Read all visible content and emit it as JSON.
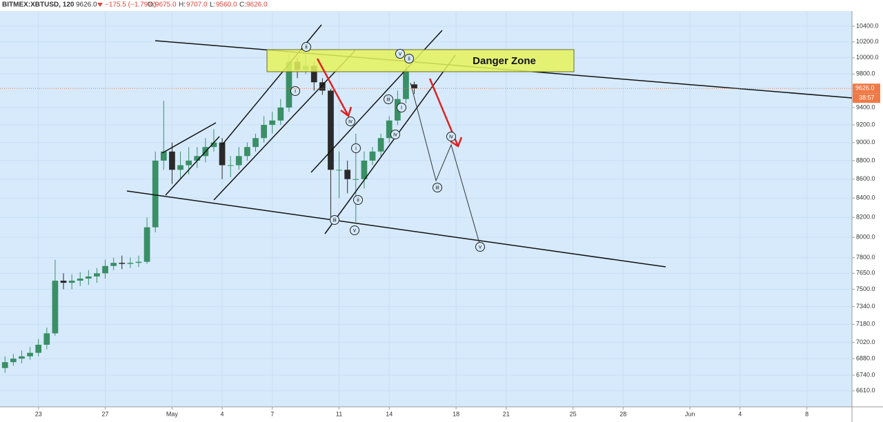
{
  "header": {
    "symbol": "BITMEX:XBTUSD, 120",
    "price": "9626.0",
    "change": "−175.5 (−1.79%)",
    "ohlc": [
      {
        "key": "O:",
        "value": "9675.0"
      },
      {
        "key": "H:",
        "value": "9707.0"
      },
      {
        "key": "L:",
        "value": "9560.0"
      },
      {
        "key": "C:",
        "value": "9626.0"
      }
    ]
  },
  "chart_data": {
    "type": "candlestick",
    "x": [
      21,
      21.5,
      22,
      22.5,
      23,
      23.5,
      24,
      24.5,
      25,
      25.5,
      26,
      26.5,
      27,
      27.5,
      28,
      28.5,
      29,
      29.5,
      30,
      30.5,
      31,
      31.5,
      32,
      32.5,
      33,
      33.5,
      34,
      34.5,
      35,
      35.5,
      36,
      36.5,
      37,
      37.5,
      38,
      38.5,
      39,
      39.5,
      40,
      40.5,
      41,
      41.5,
      42,
      42.5,
      43,
      43.5,
      44,
      44.5,
      45,
      45.5
    ],
    "open": [
      6800,
      6850,
      6880,
      6900,
      6930,
      7000,
      7100,
      7580,
      7560,
      7580,
      7600,
      7620,
      7650,
      7720,
      7750,
      7740,
      7750,
      7760,
      8100,
      8800,
      8900,
      8700,
      8750,
      8800,
      8850,
      8950,
      9000,
      8750,
      8750,
      8850,
      8950,
      9050,
      9200,
      9250,
      9400,
      9950,
      9850,
      9900,
      9700,
      9600,
      8700,
      8700,
      8600,
      8600,
      8800,
      8900,
      9050,
      9250,
      9500,
      9675
    ],
    "high": [
      6900,
      6920,
      6950,
      6980,
      7050,
      7150,
      7780,
      7650,
      7640,
      7660,
      7680,
      7700,
      7780,
      7800,
      7820,
      7800,
      7820,
      8200,
      8900,
      9480,
      9000,
      8900,
      8950,
      8950,
      9050,
      9150,
      9050,
      8850,
      8950,
      9000,
      9100,
      9300,
      9350,
      9500,
      10050,
      10000,
      10050,
      9950,
      9750,
      9620,
      8900,
      8800,
      9100,
      8900,
      8950,
      9100,
      9300,
      9600,
      10000,
      9707
    ],
    "low": [
      6760,
      6820,
      6840,
      6870,
      6900,
      6960,
      7080,
      7500,
      7500,
      7530,
      7540,
      7560,
      7600,
      7680,
      7690,
      7700,
      7710,
      7740,
      8050,
      8700,
      8550,
      8600,
      8650,
      8720,
      8780,
      8900,
      8600,
      8620,
      8700,
      8800,
      8900,
      9000,
      9100,
      9200,
      9350,
      9750,
      9800,
      9600,
      9550,
      8150,
      8400,
      8450,
      8150,
      8500,
      8750,
      8850,
      9000,
      9200,
      9450,
      9560
    ],
    "close": [
      6850,
      6880,
      6900,
      6930,
      7000,
      7100,
      7580,
      7560,
      7580,
      7600,
      7620,
      7650,
      7720,
      7750,
      7740,
      7750,
      7760,
      8100,
      8800,
      8900,
      8700,
      8750,
      8800,
      8850,
      8950,
      9000,
      8750,
      8750,
      8850,
      8950,
      9050,
      9200,
      9250,
      9400,
      9950,
      9850,
      9900,
      9700,
      9600,
      8700,
      8700,
      8600,
      8600,
      8800,
      8900,
      9050,
      9250,
      9500,
      9850,
      9626
    ],
    "up_color": "#3a8f66",
    "down_color": "#2a2a2a",
    "log_scale": true,
    "grid": true,
    "xlim": [
      20.7,
      71.7
    ],
    "ylim": [
      6480,
      10580
    ],
    "xticks": [
      23,
      27,
      {
        "value": 31,
        "label": "May"
      },
      {
        "value": 34,
        "label": "4"
      },
      {
        "value": 37,
        "label": "7"
      },
      {
        "value": 41,
        "label": "11"
      },
      {
        "value": 44,
        "label": "14"
      },
      {
        "value": 48,
        "label": "18"
      },
      {
        "value": 51,
        "label": "21"
      },
      {
        "value": 55,
        "label": "25"
      },
      {
        "value": 58,
        "label": "28"
      },
      {
        "value": 62,
        "label": "Jun"
      },
      {
        "value": 65,
        "label": "4"
      },
      {
        "value": 69,
        "label": "8"
      }
    ],
    "yticks": [
      {
        "value": 10400,
        "label": "10400.0"
      },
      {
        "value": 10200,
        "label": "10200.0"
      },
      {
        "value": 10000,
        "label": "10000.0"
      },
      {
        "value": 9800,
        "label": "9800.0"
      },
      {
        "value": 9400,
        "label": "9400.0"
      },
      {
        "value": 9200,
        "label": "9200.0"
      },
      {
        "value": 9000,
        "label": "9000.0"
      },
      {
        "value": 8800,
        "label": "8800.0"
      },
      {
        "value": 8600,
        "label": "8600.0"
      },
      {
        "value": 8400,
        "label": "8400.0"
      },
      {
        "value": 8200,
        "label": "8200.0"
      },
      {
        "value": 8000,
        "label": "8000.0"
      },
      {
        "value": 7800,
        "label": "7800.0"
      },
      {
        "value": 7650,
        "label": "7650.0"
      },
      {
        "value": 7500,
        "label": "7500.0"
      },
      {
        "value": 7340,
        "label": "7340.0"
      },
      {
        "value": 7180,
        "label": "7180.0"
      },
      {
        "value": 7020,
        "label": "7020.0"
      },
      {
        "value": 6880,
        "label": "6880.0"
      },
      {
        "value": 6740,
        "label": "6740.0"
      },
      {
        "value": 6610,
        "label": "6610.0"
      }
    ],
    "last_price": {
      "value": 9626,
      "label": "9626.0"
    },
    "countdown": "38:57",
    "annotations": {
      "danger_zone": "Danger Zone",
      "waves": [
        "ii",
        "i",
        "iv",
        "i",
        "iii",
        "ii",
        "v",
        "iii",
        "iv",
        "i",
        "v",
        "ii",
        "iv",
        "iii",
        "v"
      ]
    }
  }
}
